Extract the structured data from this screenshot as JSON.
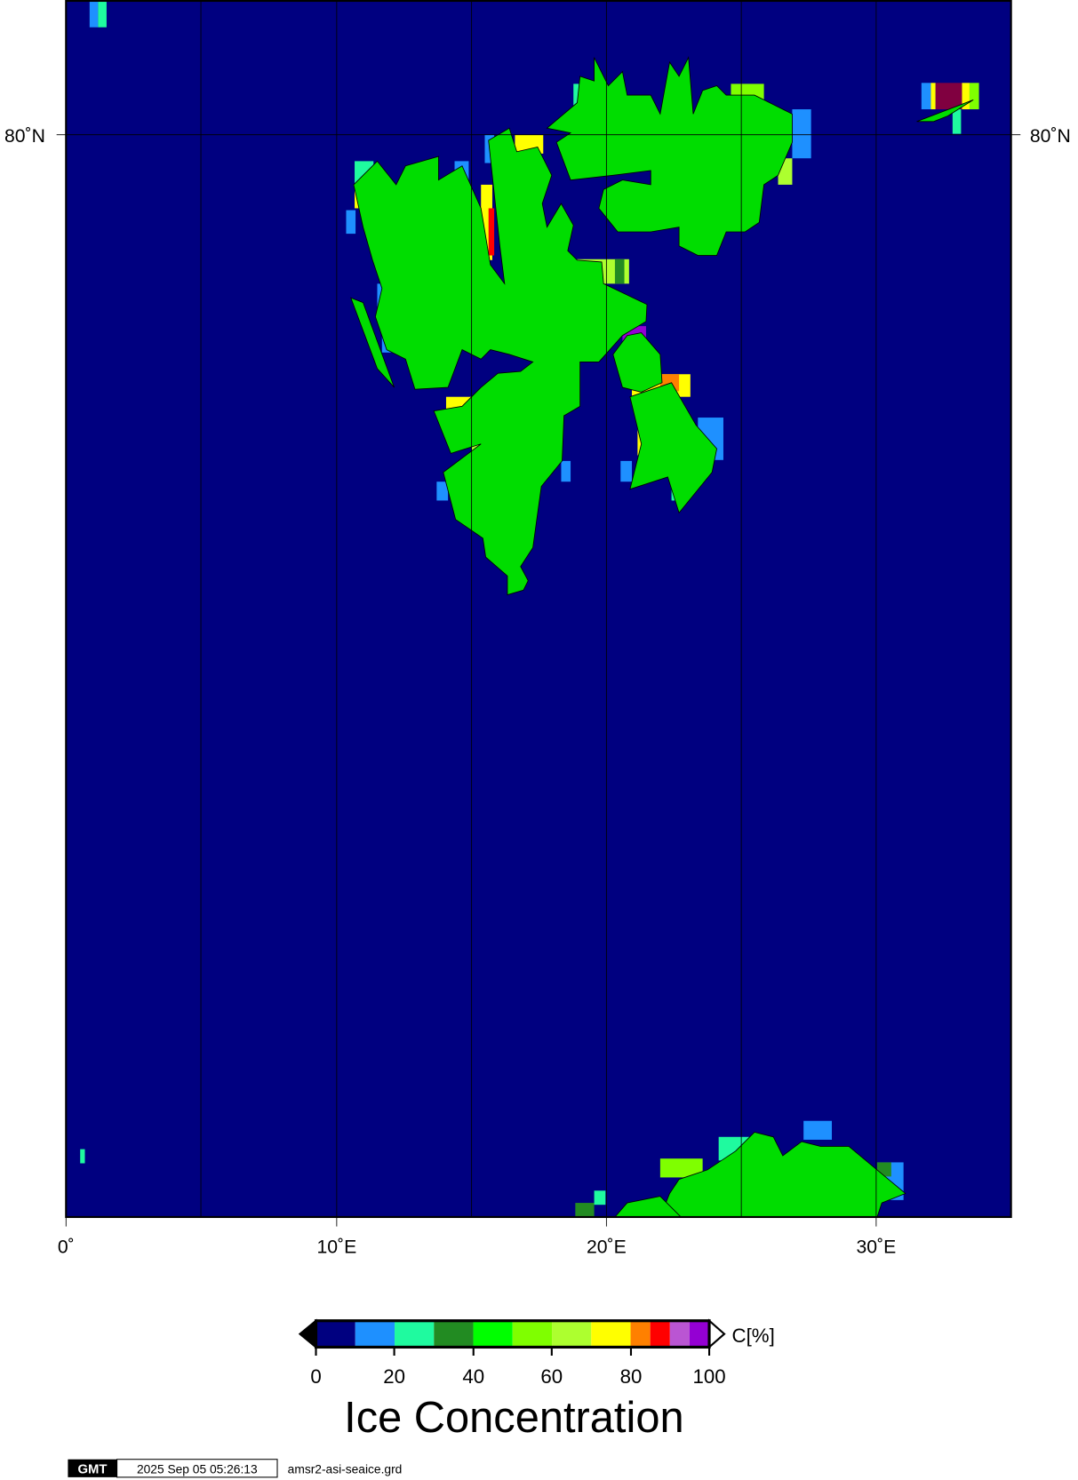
{
  "map": {
    "ocean_color": "#000080",
    "land_color": "#00dd00",
    "lat_labels": [
      "80˚N",
      "80˚N"
    ],
    "lon_labels": [
      "0˚",
      "10˚E",
      "20˚E",
      "30˚E"
    ]
  },
  "colorbar": {
    "label": "C[%]",
    "boundaries": [
      0,
      10,
      20,
      30,
      40,
      50,
      60,
      70,
      80,
      85,
      90,
      95,
      100
    ],
    "colors": [
      "#000080",
      "#1e90ff",
      "#1ffa9f",
      "#228b22",
      "#00ff00",
      "#7fff00",
      "#adff2f",
      "#ffff00",
      "#ff8000",
      "#ff0000",
      "#ba55d3",
      "#9400d3"
    ],
    "below_color": "#000000",
    "above_color": "#ffffff",
    "tick_labels": [
      "0",
      "20",
      "40",
      "60",
      "80",
      "100"
    ]
  },
  "title": "Ice Concentration",
  "footer": {
    "logo": "GMT",
    "timestamp": "2025 Sep 05 05:26:13",
    "filename": "amsr2-asi-seaice.grd"
  }
}
